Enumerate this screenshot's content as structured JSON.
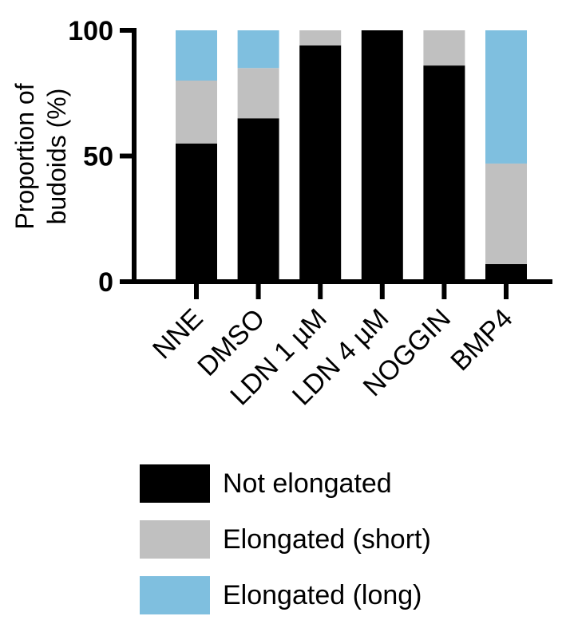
{
  "chart_data": {
    "type": "bar",
    "stacked": true,
    "ylabel": [
      "Proportion of",
      "budoids (%)"
    ],
    "ylim": [
      0,
      100
    ],
    "yticks": [
      "0",
      "50",
      "100"
    ],
    "categories": [
      "NNE",
      "DMSO",
      "LDN 1 µM",
      "LDN 4 µM",
      "NOGGIN",
      "BMP4"
    ],
    "series": [
      {
        "name": "Not elongated",
        "color": "#000000",
        "values": [
          55,
          65,
          94,
          100,
          86,
          7
        ]
      },
      {
        "name": "Elongated (short)",
        "color": "#c0c0c0",
        "values": [
          25,
          20,
          6,
          0,
          14,
          40
        ]
      },
      {
        "name": "Elongated (long)",
        "color": "#7fbfdf",
        "values": [
          20,
          15,
          0,
          0,
          0,
          53
        ]
      }
    ],
    "legend_position": "bottom"
  }
}
